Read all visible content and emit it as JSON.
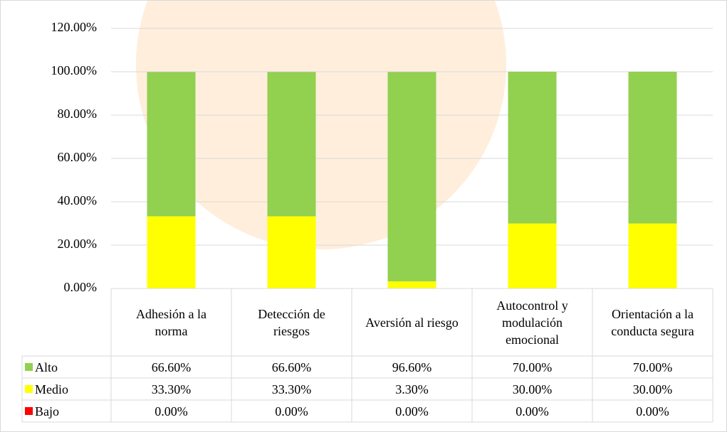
{
  "chart_data": {
    "type": "stacked_bar",
    "categories": [
      "Adhesión a la norma",
      "Detección de riesgos",
      "Aversión al riesgo",
      "Autocontrol y modulación emocional",
      "Orientación a la conducta segura"
    ],
    "series": [
      {
        "name": "Alto",
        "color": "#92d050",
        "values": [
          66.6,
          66.6,
          96.6,
          70,
          70
        ],
        "value_labels": [
          "66.60%",
          "66.60%",
          "96.60%",
          "70.00%",
          "70.00%"
        ]
      },
      {
        "name": "Medio",
        "color": "#ffff00",
        "values": [
          33.3,
          33.3,
          3.3,
          30,
          30
        ],
        "value_labels": [
          "33.30%",
          "33.30%",
          "3.30%",
          "30.00%",
          "30.00%"
        ]
      },
      {
        "name": "Bajo",
        "color": "#ff0000",
        "values": [
          0,
          0,
          0,
          0,
          0
        ],
        "value_labels": [
          "0.00%",
          "0.00%",
          "0.00%",
          "0.00%",
          "0.00%"
        ]
      }
    ],
    "ylim": [
      0,
      120
    ],
    "yticks": [
      {
        "value": 0,
        "label": "0.00%"
      },
      {
        "value": 20,
        "label": "20.00%"
      },
      {
        "value": 40,
        "label": "40.00%"
      },
      {
        "value": 60,
        "label": "60.00%"
      },
      {
        "value": 80,
        "label": "80.00%"
      },
      {
        "value": 100,
        "label": "100.00%"
      },
      {
        "value": 120,
        "label": "120.00%"
      }
    ],
    "grid": true
  }
}
